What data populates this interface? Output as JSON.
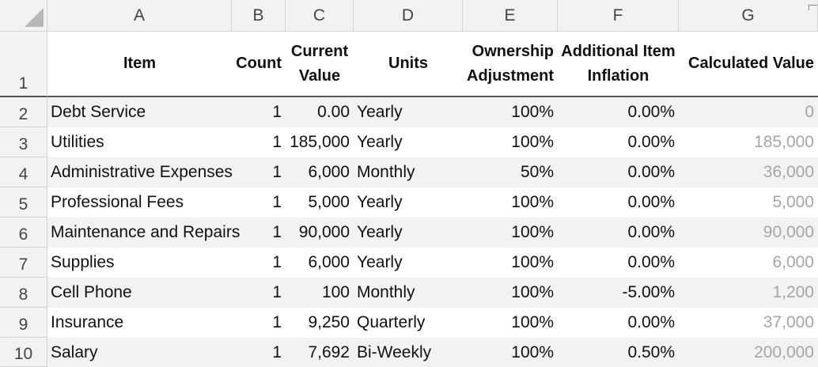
{
  "columns": [
    "A",
    "B",
    "C",
    "D",
    "E",
    "F",
    "G"
  ],
  "row_numbers": [
    "1",
    "2",
    "3",
    "4",
    "5",
    "6",
    "7",
    "8",
    "9",
    "10"
  ],
  "headers": {
    "item": "Item",
    "count": "Count",
    "current_value_1": "Current",
    "current_value_2": "Value",
    "units": "Units",
    "ownership_1": "Ownership",
    "ownership_2": "Adjustment",
    "inflation_1": "Additional Item",
    "inflation_2": "Inflation",
    "calculated": "Calculated Value"
  },
  "rows": [
    {
      "item": "Debt Service",
      "count": "1",
      "value": "0.00",
      "units": "Yearly",
      "ownership": "100%",
      "inflation": "0.00%",
      "calculated": "0"
    },
    {
      "item": "Utilities",
      "count": "1",
      "value": "185,000",
      "units": "Yearly",
      "ownership": "100%",
      "inflation": "0.00%",
      "calculated": "185,000"
    },
    {
      "item": "Administrative Expenses",
      "count": "1",
      "value": "6,000",
      "units": "Monthly",
      "ownership": "50%",
      "inflation": "0.00%",
      "calculated": "36,000"
    },
    {
      "item": "Professional Fees",
      "count": "1",
      "value": "5,000",
      "units": "Yearly",
      "ownership": "100%",
      "inflation": "0.00%",
      "calculated": "5,000"
    },
    {
      "item": "Maintenance and Repairs",
      "count": "1",
      "value": "90,000",
      "units": "Yearly",
      "ownership": "100%",
      "inflation": "0.00%",
      "calculated": "90,000"
    },
    {
      "item": "Supplies",
      "count": "1",
      "value": "6,000",
      "units": "Yearly",
      "ownership": "100%",
      "inflation": "0.00%",
      "calculated": "6,000"
    },
    {
      "item": "Cell Phone",
      "count": "1",
      "value": "100",
      "units": "Monthly",
      "ownership": "100%",
      "inflation": "-5.00%",
      "calculated": "1,200"
    },
    {
      "item": "Insurance",
      "count": "1",
      "value": "9,250",
      "units": "Quarterly",
      "ownership": "100%",
      "inflation": "0.00%",
      "calculated": "37,000"
    },
    {
      "item": "Salary",
      "count": "1",
      "value": "7,692",
      "units": "Bi-Weekly",
      "ownership": "100%",
      "inflation": "0.50%",
      "calculated": "200,000"
    }
  ],
  "colors": {
    "header_bg": "#f2f2f2",
    "band": "#f2f2f2",
    "calculated_text": "#a6a6a6",
    "grid": "#d4d4d4"
  }
}
